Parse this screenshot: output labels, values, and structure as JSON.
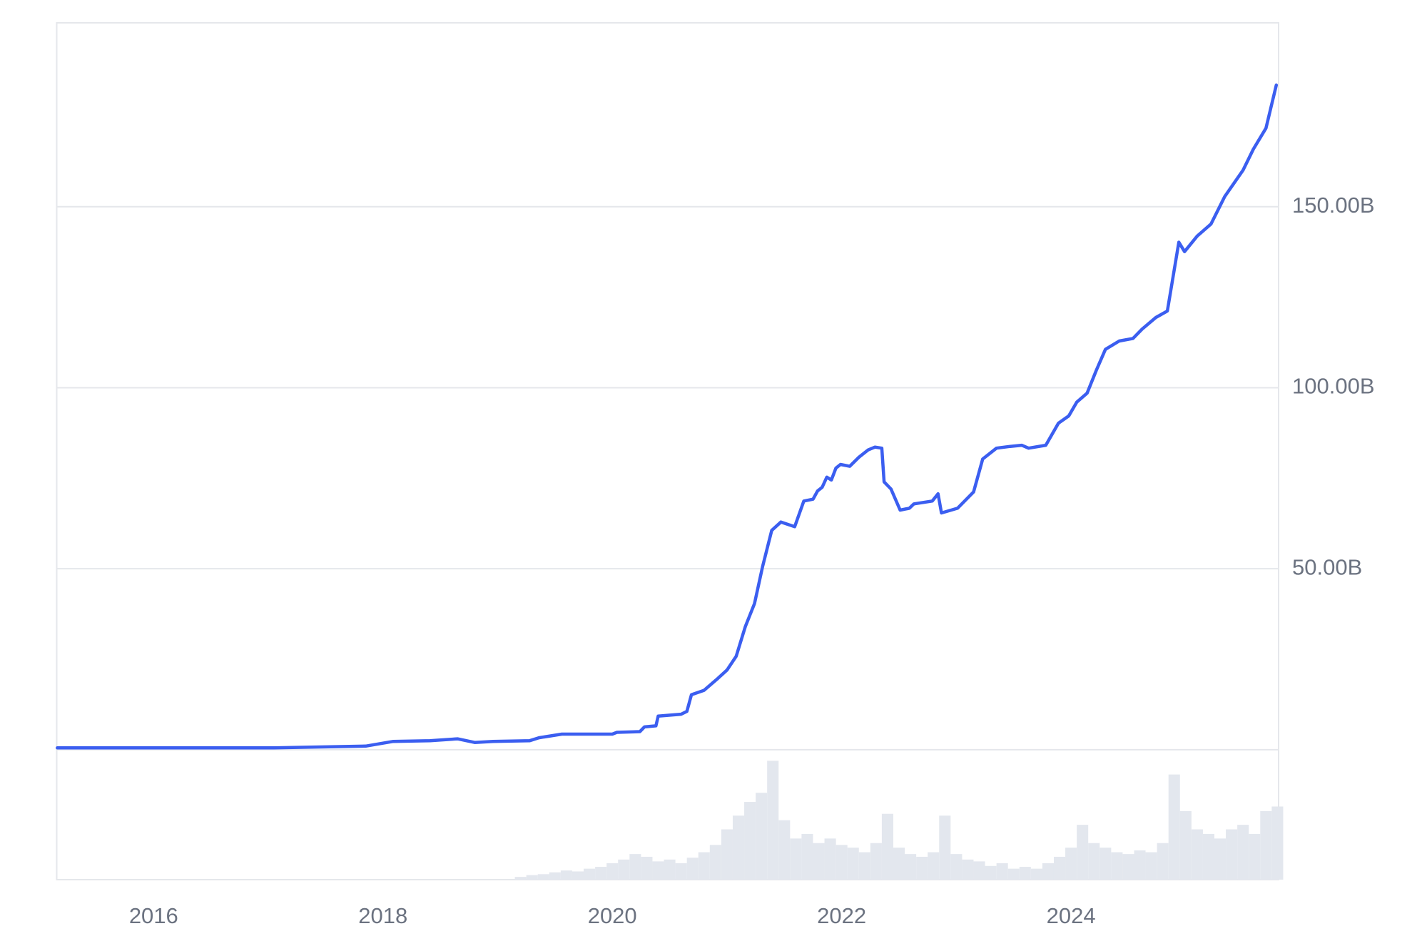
{
  "chart_data": {
    "type": "line",
    "color": "#3b5ef0",
    "grid": true,
    "xlim": [
      2015.155,
      2025.81
    ],
    "xticks": [
      2016,
      2018,
      2020,
      2022,
      2024
    ],
    "ylim": [
      -35.9,
      200.8
    ],
    "yticks": [
      {
        "value": 50,
        "label": "50.00B"
      },
      {
        "value": 100,
        "label": "100.00B"
      },
      {
        "value": 150,
        "label": "150.00B"
      }
    ],
    "x": [
      2015.16,
      2017.05,
      2017.85,
      2018.09,
      2018.41,
      2018.65,
      2018.8,
      2018.96,
      2019.28,
      2019.36,
      2019.56,
      2020.0,
      2020.04,
      2020.24,
      2020.28,
      2020.38,
      2020.4,
      2020.6,
      2020.65,
      2020.69,
      2020.8,
      2020.92,
      2021.0,
      2021.08,
      2021.16,
      2021.24,
      2021.31,
      2021.39,
      2021.47,
      2021.59,
      2021.67,
      2021.75,
      2021.79,
      2021.83,
      2021.87,
      2021.91,
      2021.95,
      2021.99,
      2022.07,
      2022.15,
      2022.23,
      2022.29,
      2022.35,
      2022.37,
      2022.43,
      2022.51,
      2022.59,
      2022.63,
      2022.79,
      2022.84,
      2022.87,
      2023.01,
      2023.15,
      2023.23,
      2023.35,
      2023.47,
      2023.57,
      2023.63,
      2023.78,
      2023.89,
      2023.98,
      2024.05,
      2024.14,
      2024.22,
      2024.3,
      2024.42,
      2024.54,
      2024.62,
      2024.74,
      2024.84,
      2024.94,
      2024.99,
      2025.1,
      2025.22,
      2025.34,
      2025.5,
      2025.59,
      2025.7,
      2025.79
    ],
    "values": [
      0.5,
      0.5,
      1,
      2.3,
      2.5,
      3.0,
      2.0,
      2.3,
      2.5,
      3.3,
      4.3,
      4.3,
      4.8,
      5.0,
      6.3,
      6.6,
      9.3,
      9.8,
      10.6,
      15.2,
      16.4,
      19.7,
      22.0,
      25.8,
      34.0,
      40.4,
      50.5,
      60.6,
      62.9,
      61.6,
      68.7,
      69.2,
      71.5,
      72.5,
      75.3,
      74.5,
      77.8,
      78.8,
      78.3,
      80.8,
      82.8,
      83.6,
      83.3,
      74.0,
      72.0,
      66.2,
      66.7,
      67.9,
      68.7,
      70.7,
      65.4,
      66.7,
      71.2,
      80.3,
      83.3,
      83.8,
      84.1,
      83.3,
      84.1,
      90.2,
      92.2,
      96.0,
      98.5,
      104.8,
      110.6,
      112.9,
      113.6,
      116.2,
      119.4,
      121.2,
      140.2,
      137.6,
      141.9,
      145.2,
      152.8,
      160.1,
      165.9,
      171.7,
      183.6
    ],
    "volume": {
      "color": "#e3e7ee",
      "y2lim": [
        0,
        93.7
      ],
      "x": [
        2019.2,
        2019.3,
        2019.4,
        2019.5,
        2019.6,
        2019.7,
        2019.8,
        2019.9,
        2020.0,
        2020.1,
        2020.2,
        2020.3,
        2020.4,
        2020.5,
        2020.6,
        2020.7,
        2020.8,
        2020.9,
        2021.0,
        2021.1,
        2021.2,
        2021.3,
        2021.4,
        2021.5,
        2021.6,
        2021.7,
        2021.8,
        2021.9,
        2022.0,
        2022.1,
        2022.2,
        2022.3,
        2022.4,
        2022.5,
        2022.6,
        2022.7,
        2022.8,
        2022.9,
        2023.0,
        2023.1,
        2023.2,
        2023.3,
        2023.4,
        2023.5,
        2023.6,
        2023.7,
        2023.8,
        2023.9,
        2024.0,
        2024.1,
        2024.2,
        2024.3,
        2024.4,
        2024.5,
        2024.6,
        2024.7,
        2024.8,
        2024.9,
        2025.0,
        2025.1,
        2025.2,
        2025.3,
        2025.4,
        2025.5,
        2025.6,
        2025.7,
        2025.8
      ],
      "values": [
        0.3,
        0.5,
        0.6,
        0.8,
        1.0,
        0.9,
        1.2,
        1.4,
        1.8,
        2.2,
        2.8,
        2.5,
        2.0,
        2.2,
        1.8,
        2.4,
        3.0,
        3.8,
        5.5,
        7.0,
        8.5,
        9.5,
        13.0,
        6.5,
        4.5,
        5.0,
        4.0,
        4.5,
        3.8,
        3.5,
        3.0,
        4.0,
        7.2,
        3.5,
        2.8,
        2.5,
        3.0,
        7.0,
        2.8,
        2.2,
        2.0,
        1.5,
        1.8,
        1.2,
        1.4,
        1.2,
        1.8,
        2.5,
        3.5,
        6.0,
        4.0,
        3.5,
        3.0,
        2.8,
        3.2,
        3.0,
        4.0,
        11.5,
        7.5,
        5.5,
        5.0,
        4.5,
        5.5,
        6.0,
        5.0,
        7.5,
        8.0
      ]
    }
  }
}
